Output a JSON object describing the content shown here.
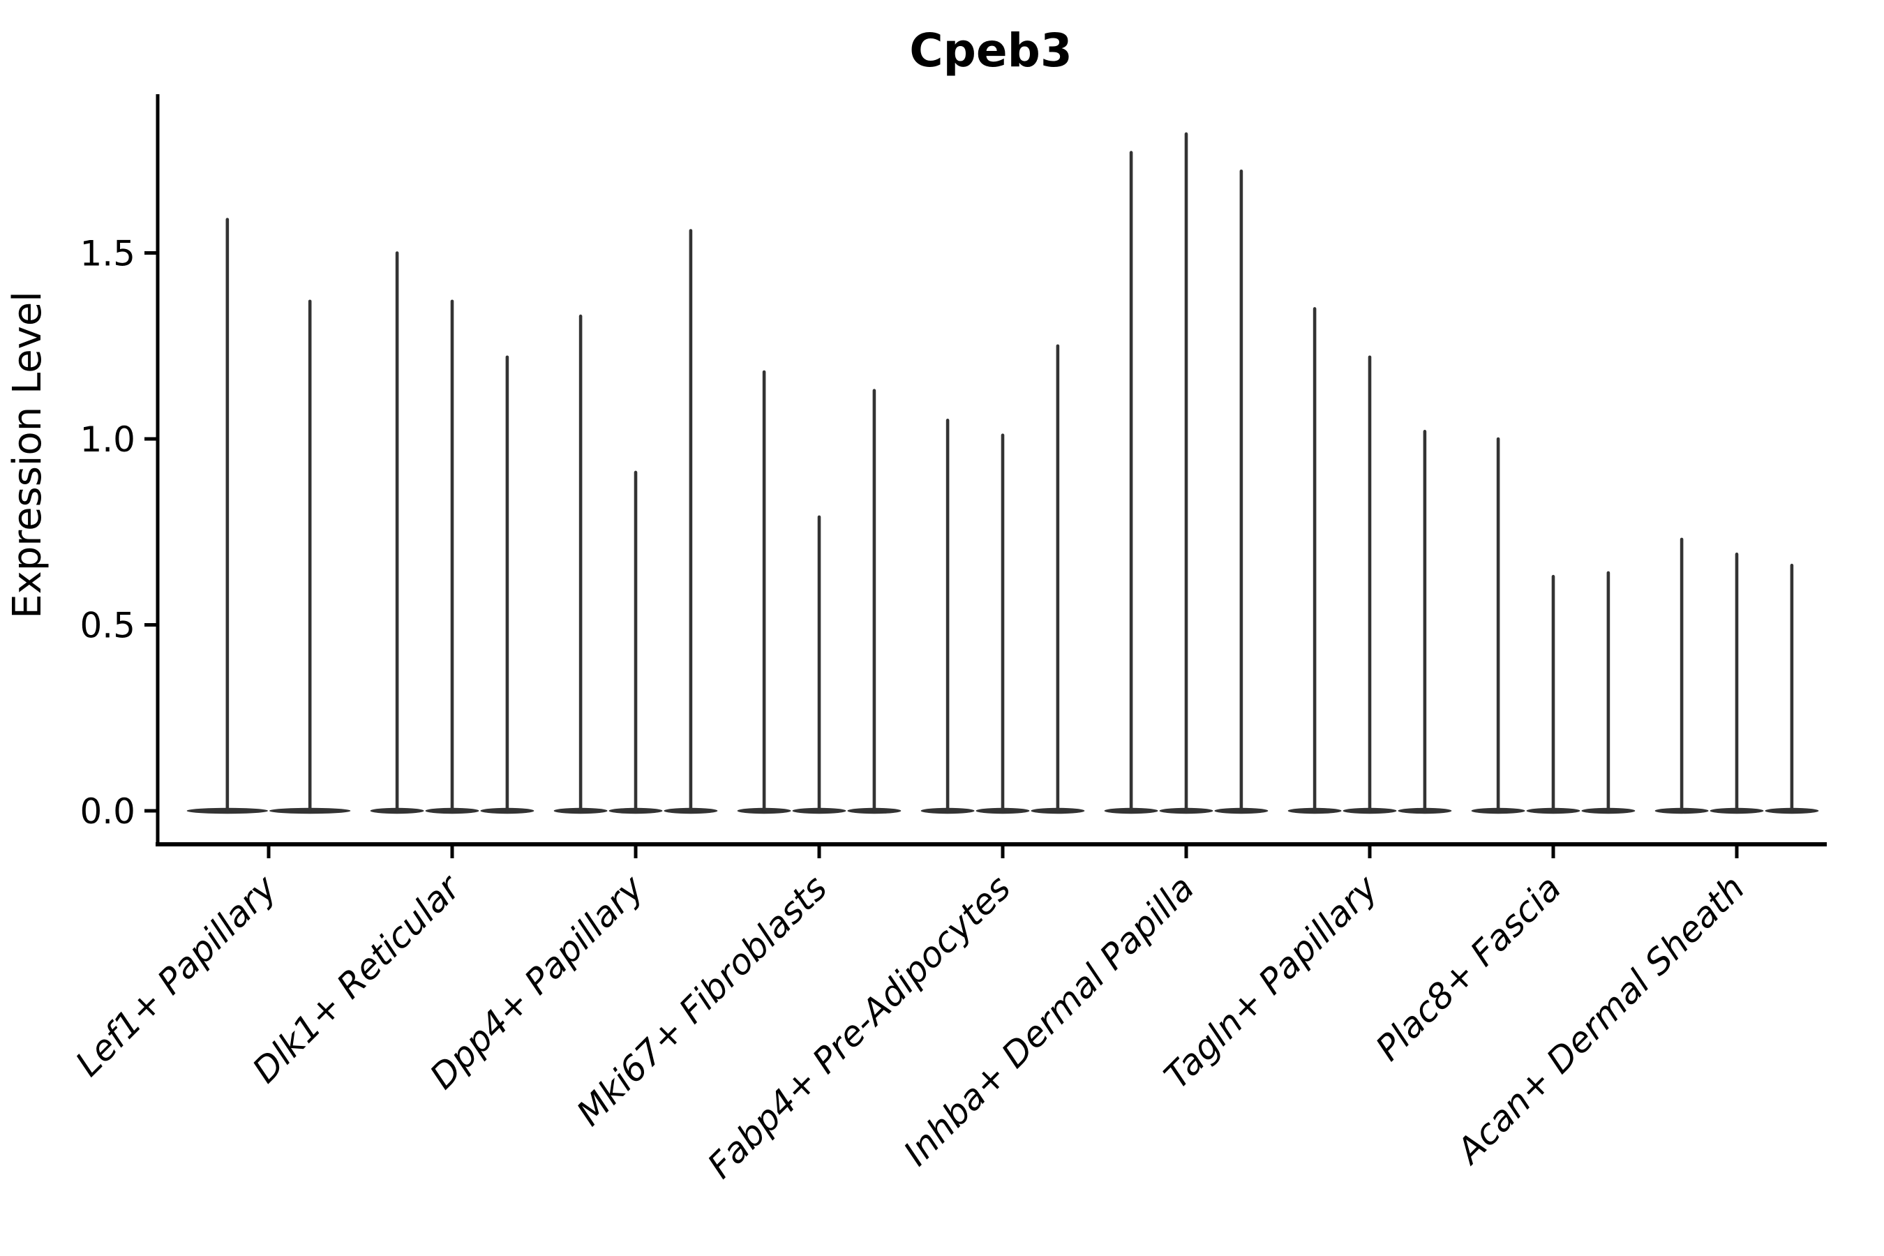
{
  "chart_data": {
    "type": "violin",
    "title": "Cpeb3",
    "ylabel": "Expression Level",
    "xlabel": "",
    "ylim": [
      0,
      1.93
    ],
    "yticks": [
      0,
      0.5,
      1.0,
      1.5
    ],
    "ytick_labels": [
      "0.0",
      "0.5",
      "1.0",
      "1.5"
    ],
    "grid": false,
    "legend": "none",
    "baseline_value": 0,
    "violin_color": "#333333",
    "axis_color": "#000000",
    "categories": [
      {
        "label": "Lef1+ Papillary",
        "violin_maxima": [
          1.59,
          1.37
        ]
      },
      {
        "label": "Dlk1+ Reticular",
        "violin_maxima": [
          1.5,
          1.37,
          1.22
        ]
      },
      {
        "label": "Dpp4+ Papillary",
        "violin_maxima": [
          1.33,
          0.91,
          1.56
        ]
      },
      {
        "label": "Mki67+ Fibroblasts",
        "violin_maxima": [
          1.18,
          0.79,
          1.13
        ]
      },
      {
        "label": "Fabp4+ Pre-Adipocytes",
        "violin_maxima": [
          1.05,
          1.01,
          1.25
        ]
      },
      {
        "label": "Inhba+ Dermal Papilla",
        "violin_maxima": [
          1.77,
          1.82,
          1.72
        ]
      },
      {
        "label": "Tagln+ Papillary",
        "violin_maxima": [
          1.35,
          1.22,
          1.02
        ]
      },
      {
        "label": "Plac8+ Fascia",
        "violin_maxima": [
          1.0,
          0.63,
          0.64
        ]
      },
      {
        "label": "Acan+ Dermal Sheath",
        "violin_maxima": [
          0.73,
          0.69,
          0.66
        ]
      }
    ]
  }
}
